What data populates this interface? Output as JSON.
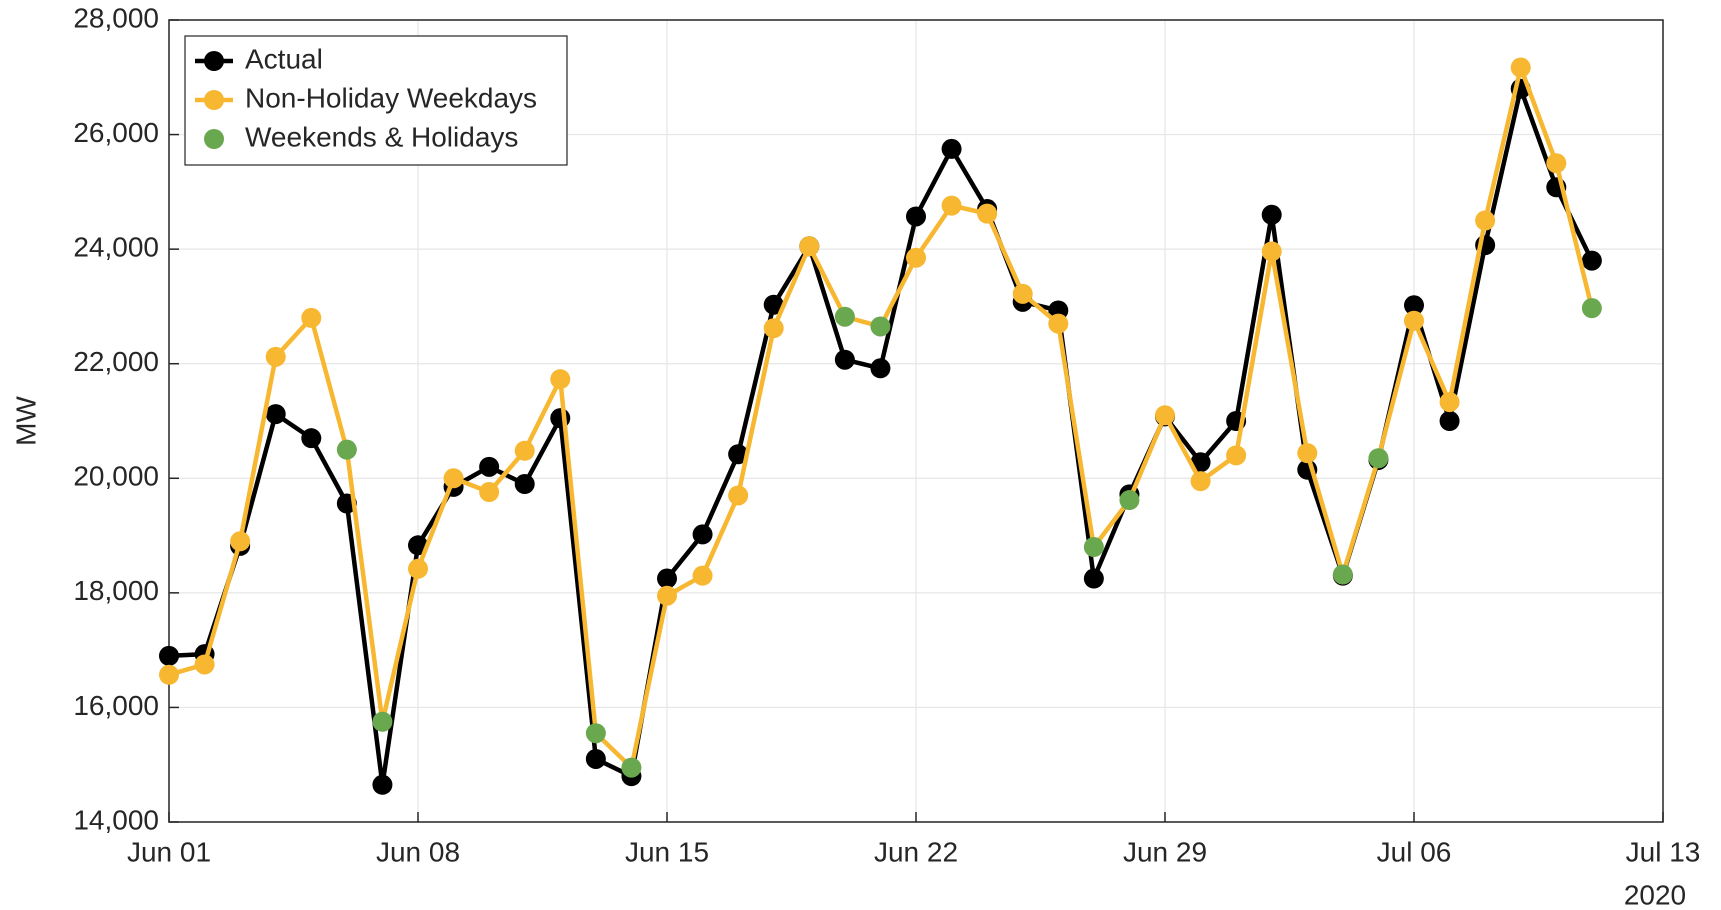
{
  "chart_data": {
    "type": "line",
    "ylabel": "MW",
    "x_year_label": "2020",
    "x": [
      "2020-06-01",
      "2020-06-02",
      "2020-06-03",
      "2020-06-04",
      "2020-06-05",
      "2020-06-06",
      "2020-06-07",
      "2020-06-08",
      "2020-06-09",
      "2020-06-10",
      "2020-06-11",
      "2020-06-12",
      "2020-06-13",
      "2020-06-14",
      "2020-06-15",
      "2020-06-16",
      "2020-06-17",
      "2020-06-18",
      "2020-06-19",
      "2020-06-20",
      "2020-06-21",
      "2020-06-22",
      "2020-06-23",
      "2020-06-24",
      "2020-06-25",
      "2020-06-26",
      "2020-06-27",
      "2020-06-28",
      "2020-06-29",
      "2020-06-30",
      "2020-07-01",
      "2020-07-02",
      "2020-07-03",
      "2020-07-04",
      "2020-07-05",
      "2020-07-06",
      "2020-07-07",
      "2020-07-08",
      "2020-07-09",
      "2020-07-10",
      "2020-07-11"
    ],
    "series": [
      {
        "name": "Actual",
        "color": "#000000",
        "values": [
          16900,
          16930,
          18820,
          21120,
          20700,
          19560,
          14650,
          18830,
          19850,
          20200,
          19900,
          21050,
          15100,
          14800,
          18250,
          19020,
          20420,
          23030,
          24050,
          22070,
          21920,
          24570,
          25750,
          24700,
          23080,
          22930,
          18250,
          19720,
          21080,
          20280,
          21000,
          24600,
          20150,
          18300,
          20320,
          23020,
          21000,
          24070,
          26800,
          25080,
          23800
        ]
      },
      {
        "name": "Non-Holiday Weekdays",
        "color": "#f7b731",
        "values": [
          16570,
          16750,
          18900,
          22120,
          22800,
          null,
          null,
          18420,
          20000,
          19760,
          20480,
          21730,
          null,
          null,
          17950,
          18300,
          19700,
          22620,
          24050,
          null,
          null,
          23850,
          24760,
          24620,
          23220,
          22700,
          null,
          null,
          21100,
          19950,
          20400,
          23960,
          20440,
          null,
          null,
          22750,
          21330,
          24500,
          27170,
          25500,
          null
        ]
      },
      {
        "name": "Weekends & Holidays",
        "color": "#6aa84f",
        "values": [
          null,
          null,
          null,
          null,
          null,
          20500,
          15750,
          null,
          null,
          null,
          null,
          null,
          15550,
          14950,
          null,
          null,
          null,
          null,
          null,
          22820,
          22650,
          null,
          null,
          null,
          null,
          null,
          18800,
          19620,
          null,
          null,
          null,
          null,
          null,
          18320,
          20350,
          null,
          null,
          null,
          null,
          null,
          22970
        ]
      }
    ],
    "xlim": [
      "2020-06-01",
      "2020-07-13"
    ],
    "xticks": [
      {
        "value": "2020-06-01",
        "label": "Jun 01"
      },
      {
        "value": "2020-06-08",
        "label": "Jun 08"
      },
      {
        "value": "2020-06-15",
        "label": "Jun 15"
      },
      {
        "value": "2020-06-22",
        "label": "Jun 22"
      },
      {
        "value": "2020-06-29",
        "label": "Jun 29"
      },
      {
        "value": "2020-07-06",
        "label": "Jul 06"
      },
      {
        "value": "2020-07-13",
        "label": "Jul 13"
      }
    ],
    "ylim": [
      14000,
      28000
    ],
    "yticks": [
      {
        "value": 14000,
        "label": "14,000"
      },
      {
        "value": 16000,
        "label": "16,000"
      },
      {
        "value": 18000,
        "label": "18,000"
      },
      {
        "value": 20000,
        "label": "20,000"
      },
      {
        "value": 22000,
        "label": "22,000"
      },
      {
        "value": 24000,
        "label": "24,000"
      },
      {
        "value": 26000,
        "label": "26,000"
      },
      {
        "value": 28000,
        "label": "28,000"
      }
    ],
    "grid": true,
    "legend": "upper left"
  }
}
